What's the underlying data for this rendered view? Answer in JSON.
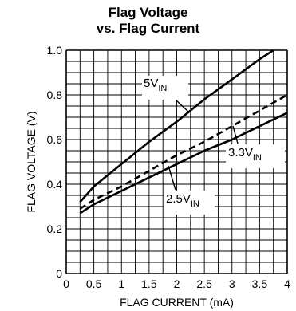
{
  "chart_data": {
    "type": "line",
    "title": "Flag Voltage",
    "subtitle": "vs. Flag Current",
    "xlabel": "FLAG CURRENT (mA)",
    "ylabel": "FLAG VOLTAGE (V)",
    "xlim": [
      0,
      4
    ],
    "ylim": [
      0,
      1.0
    ],
    "grid": true,
    "x_ticks": [
      "0",
      "0.5",
      "1",
      "1.5",
      "2",
      "2.5",
      "3",
      "3.5",
      "4"
    ],
    "y_ticks": [
      "0",
      "0.2",
      "0.4",
      "0.6",
      "0.8",
      "1.0"
    ],
    "series": [
      {
        "name": "5V",
        "label_main": "5V",
        "label_sub": "IN",
        "style": "solid",
        "x": [
          0.25,
          0.5,
          1.0,
          1.5,
          2.0,
          2.5,
          3.0,
          3.5,
          3.75
        ],
        "y": [
          0.32,
          0.39,
          0.49,
          0.59,
          0.68,
          0.78,
          0.87,
          0.96,
          1.0
        ]
      },
      {
        "name": "3.3V",
        "label_main": "3.3V",
        "label_sub": "IN",
        "style": "dashed",
        "x": [
          0.25,
          0.5,
          1.0,
          1.5,
          2.0,
          2.5,
          3.0,
          3.5,
          4.0
        ],
        "y": [
          0.29,
          0.33,
          0.39,
          0.46,
          0.53,
          0.59,
          0.66,
          0.73,
          0.8
        ]
      },
      {
        "name": "2.5V",
        "label_main": "2.5V",
        "label_sub": "IN",
        "style": "solid",
        "x": [
          0.25,
          0.5,
          1.0,
          1.5,
          2.0,
          2.5,
          3.0,
          3.5,
          4.0
        ],
        "y": [
          0.27,
          0.31,
          0.37,
          0.43,
          0.49,
          0.55,
          0.6,
          0.66,
          0.72
        ]
      }
    ]
  }
}
